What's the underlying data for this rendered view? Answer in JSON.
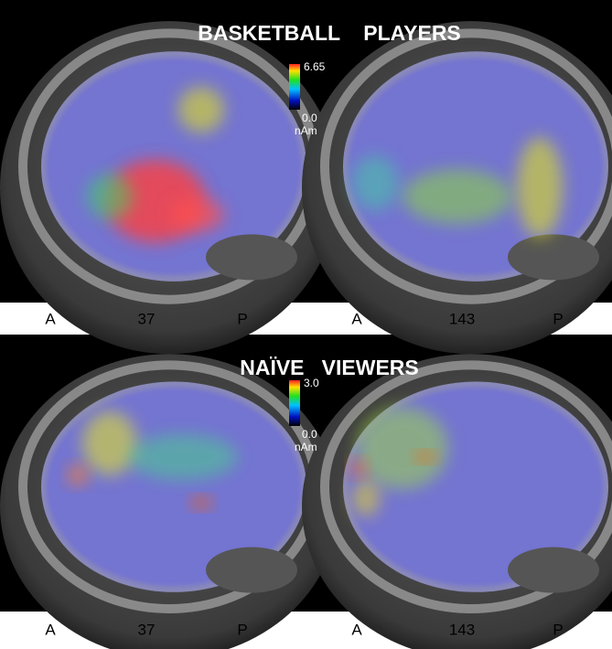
{
  "panels": [
    {
      "title": "BASKETBALL    PLAYERS",
      "colorbar": {
        "max": "6.65",
        "min": "0.0",
        "unit": "nAm"
      },
      "images": [
        {
          "anterior": "A",
          "slice": "37",
          "posterior": "P"
        },
        {
          "anterior": "A",
          "slice": "143",
          "posterior": "P"
        }
      ]
    },
    {
      "title": "NAÏVE   VIEWERS",
      "colorbar": {
        "max": "3.0",
        "min": "0.0",
        "unit": "nAm"
      },
      "images": [
        {
          "anterior": "A",
          "slice": "37",
          "posterior": "P"
        },
        {
          "anterior": "A",
          "slice": "143",
          "posterior": "P"
        }
      ]
    }
  ]
}
